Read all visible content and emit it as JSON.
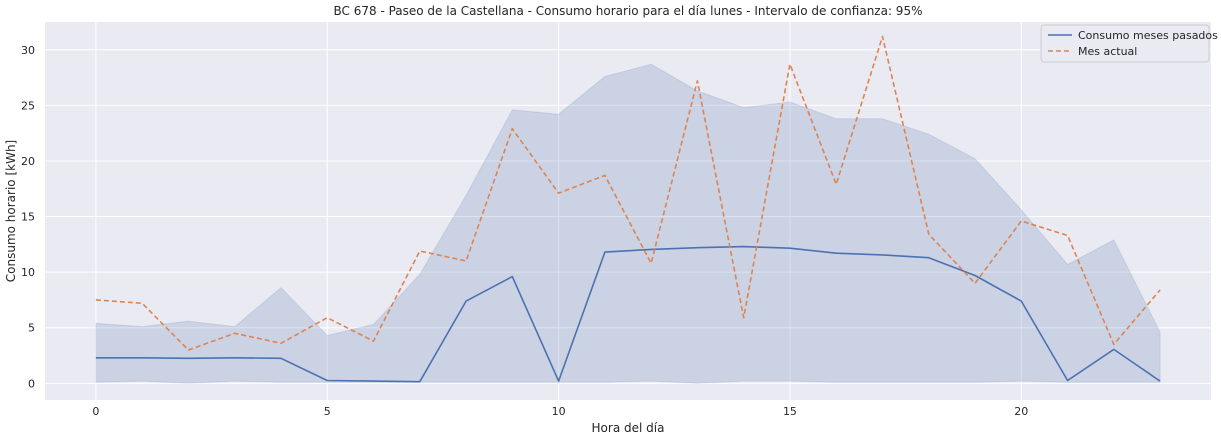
{
  "chart_data": {
    "type": "line",
    "title": "BC 678 - Paseo de la Castellana - Consumo horario para el día lunes - Intervalo de confianza: 95%",
    "xlabel": "Hora del día",
    "ylabel": "Consumo horario [kWh]",
    "xlim": [
      -1.1,
      24.1
    ],
    "ylim": [
      -1.5,
      32.5
    ],
    "xticks": [
      0,
      5,
      10,
      15,
      20
    ],
    "yticks": [
      0,
      5,
      10,
      15,
      20,
      25,
      30
    ],
    "xtick_labels": [
      "0",
      "5",
      "10",
      "15",
      "20"
    ],
    "ytick_labels": [
      "0",
      "5",
      "10",
      "15",
      "20",
      "25",
      "30"
    ],
    "grid": true,
    "legend_position": "top-right",
    "x": [
      0,
      1,
      2,
      3,
      4,
      5,
      6,
      7,
      8,
      9,
      10,
      11,
      12,
      13,
      14,
      15,
      16,
      17,
      18,
      19,
      20,
      21,
      22,
      23
    ],
    "series": [
      {
        "name": "Consumo meses pasados",
        "style": "solid",
        "color": "#4c72b0",
        "values": [
          2.3,
          2.3,
          2.25,
          2.3,
          2.25,
          0.25,
          0.2,
          0.15,
          7.4,
          9.6,
          0.2,
          11.8,
          12.05,
          12.2,
          12.3,
          12.15,
          11.7,
          11.55,
          11.3,
          9.7,
          7.4,
          0.25,
          3.05,
          0.2
        ],
        "ci_lower": [
          0.1,
          0.2,
          0.0,
          0.2,
          0.1,
          0.1,
          0.1,
          0.1,
          0.1,
          0.1,
          0.1,
          0.1,
          0.2,
          0.0,
          0.2,
          0.2,
          0.1,
          0.1,
          0.1,
          0.1,
          0.2,
          0.1,
          0.1,
          0.1
        ],
        "ci_upper": [
          5.4,
          5.1,
          5.6,
          5.1,
          8.6,
          4.3,
          5.3,
          9.8,
          16.9,
          24.6,
          24.2,
          27.6,
          28.7,
          26.3,
          24.8,
          25.3,
          23.8,
          23.8,
          22.4,
          20.2,
          15.6,
          10.7,
          12.9,
          4.6
        ]
      },
      {
        "name": "Mes actual",
        "style": "dashed",
        "color": "#dd8452",
        "values": [
          7.5,
          7.2,
          3.0,
          4.5,
          3.6,
          5.9,
          3.8,
          11.9,
          11.0,
          22.9,
          17.1,
          18.7,
          10.8,
          27.2,
          5.9,
          28.7,
          17.9,
          31.2,
          13.4,
          9.0,
          14.6,
          13.3,
          3.5,
          8.4
        ]
      }
    ]
  }
}
